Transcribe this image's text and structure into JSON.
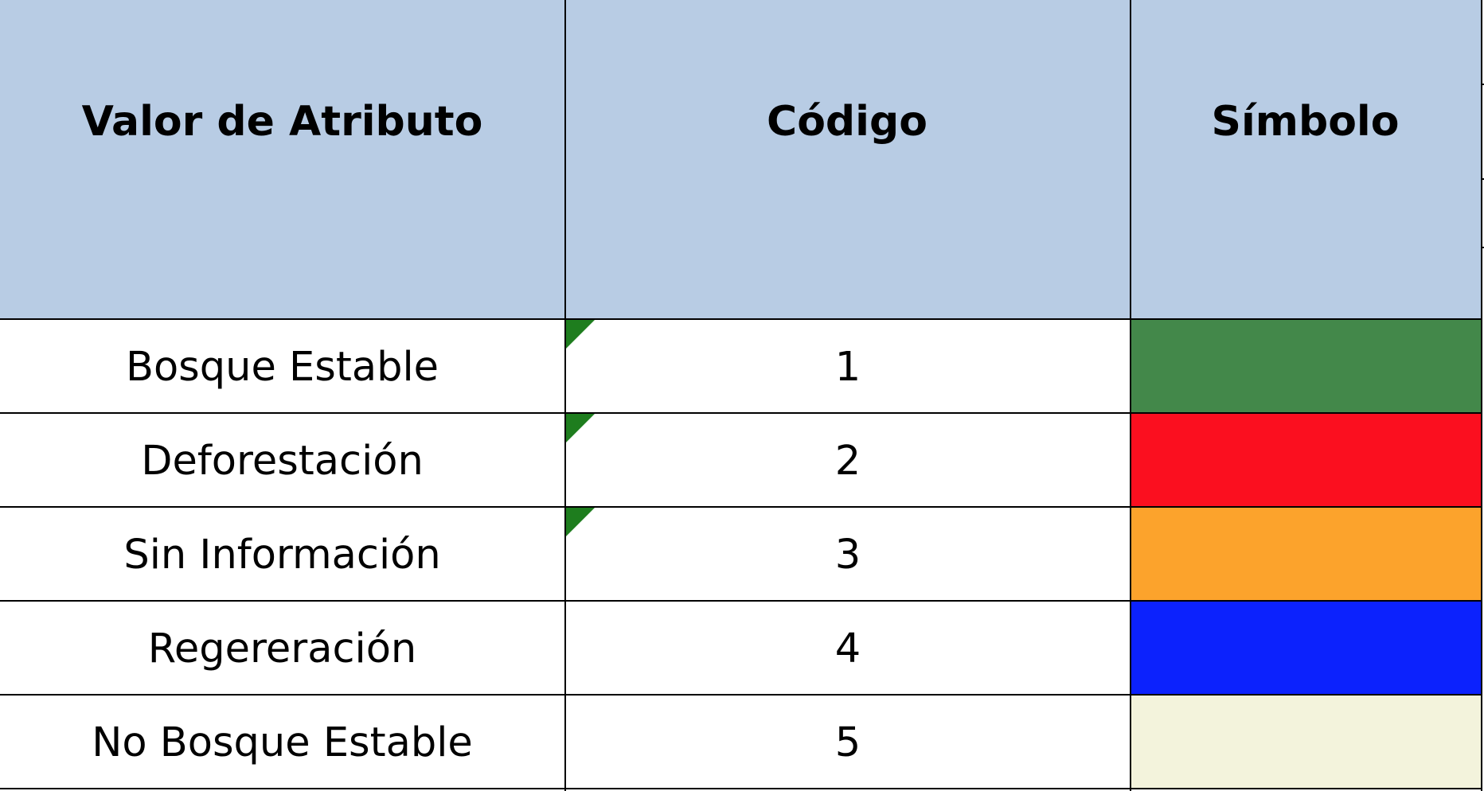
{
  "table": {
    "headers": {
      "attribute": "Valor de Atributo",
      "code": "Código",
      "symbol": "Símbolo"
    },
    "rows": [
      {
        "attribute": "Bosque Estable",
        "code": "1",
        "color": "#43884a",
        "note": true
      },
      {
        "attribute": "Deforestación",
        "code": "2",
        "color": "#fb0f1f",
        "note": true
      },
      {
        "attribute": "Sin Información",
        "code": "3",
        "color": "#fca32c",
        "note": true
      },
      {
        "attribute": "Regereración",
        "code": "4",
        "color": "#0c22fd",
        "note": false
      },
      {
        "attribute": "No Bosque Estable",
        "code": "5",
        "color": "#f3f3dc",
        "note": false
      }
    ]
  },
  "colors": {
    "header_bg": "#b8cce4",
    "note_marker": "#1e7d1e",
    "grid": "#000000"
  }
}
